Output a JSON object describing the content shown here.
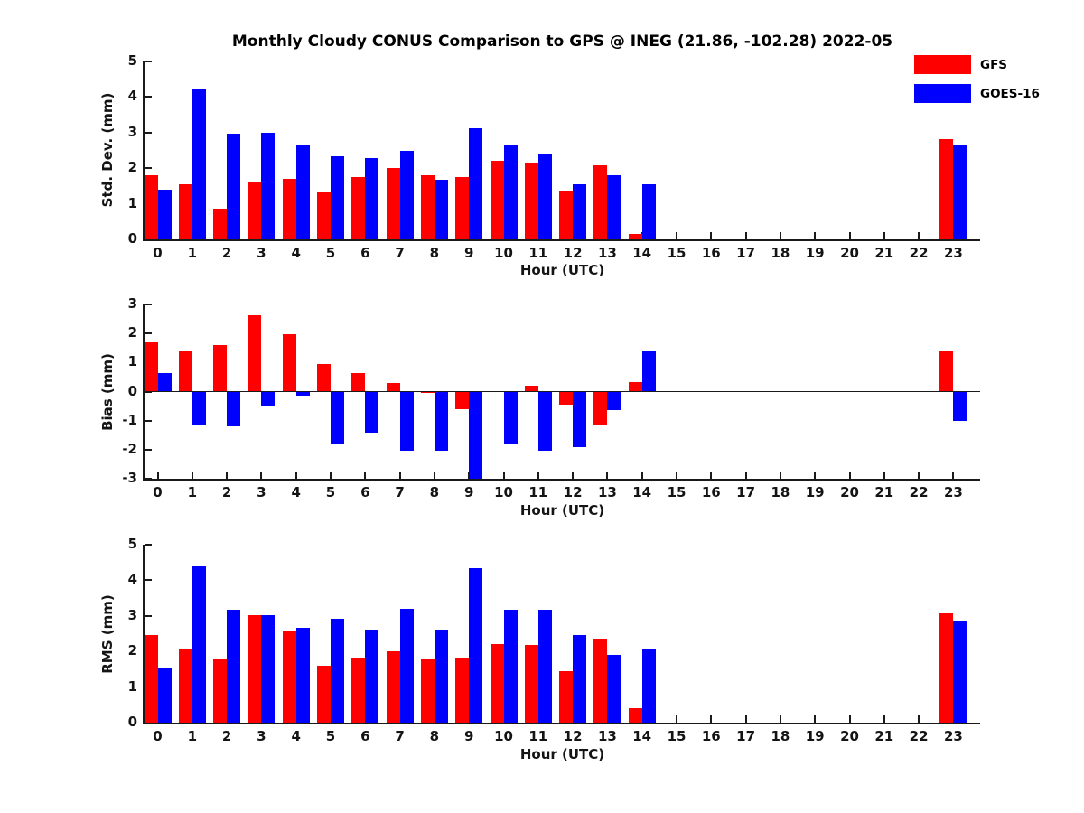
{
  "title": "Monthly Cloudy CONUS Comparison to GPS @ INEG (21.86, -102.28) 2022-05",
  "legend": [
    {
      "label": "GFS",
      "color": "#ff0000"
    },
    {
      "label": "GOES-16",
      "color": "#0000ff"
    }
  ],
  "colors": {
    "gfs": "#ff0000",
    "goes16": "#0000ff",
    "axis": "#1a1a1a",
    "background": "#ffffff"
  },
  "chart_data": [
    {
      "type": "bar",
      "panel": "std-dev",
      "ylabel": "Std. Dev. (mm)",
      "xlabel": "Hour (UTC)",
      "ylim": [
        0,
        5
      ],
      "yticks": [
        0,
        1,
        2,
        3,
        4,
        5
      ],
      "categories": [
        0,
        1,
        2,
        3,
        4,
        5,
        6,
        7,
        8,
        9,
        10,
        11,
        12,
        13,
        14,
        15,
        16,
        17,
        18,
        19,
        20,
        21,
        22,
        23
      ],
      "legend_position": "top-right-outside",
      "grid": false,
      "series": [
        {
          "name": "GFS",
          "color": "#ff0000",
          "values": [
            1.8,
            1.55,
            0.87,
            1.62,
            1.7,
            1.32,
            1.75,
            2.0,
            1.8,
            1.75,
            2.2,
            2.17,
            1.38,
            2.07,
            0.15,
            null,
            null,
            null,
            null,
            null,
            null,
            null,
            null,
            2.82
          ]
        },
        {
          "name": "GOES-16",
          "color": "#0000ff",
          "values": [
            1.4,
            4.22,
            2.97,
            2.99,
            2.66,
            2.33,
            2.28,
            2.5,
            1.68,
            3.12,
            2.67,
            2.42,
            1.56,
            1.8,
            1.56,
            null,
            null,
            null,
            null,
            null,
            null,
            null,
            null,
            2.67
          ]
        }
      ]
    },
    {
      "type": "bar",
      "panel": "bias",
      "ylabel": "Bias (mm)",
      "xlabel": "Hour (UTC)",
      "ylim": [
        -3,
        3
      ],
      "yticks": [
        -3,
        -2,
        -1,
        0,
        1,
        2,
        3
      ],
      "categories": [
        0,
        1,
        2,
        3,
        4,
        5,
        6,
        7,
        8,
        9,
        10,
        11,
        12,
        13,
        14,
        15,
        16,
        17,
        18,
        19,
        20,
        21,
        22,
        23
      ],
      "grid": false,
      "zero_line": true,
      "series": [
        {
          "name": "GFS",
          "color": "#ff0000",
          "values": [
            1.7,
            1.37,
            1.6,
            2.62,
            1.98,
            0.95,
            0.65,
            0.3,
            -0.05,
            -0.6,
            null,
            0.2,
            -0.45,
            -1.15,
            0.33,
            null,
            null,
            null,
            null,
            null,
            null,
            null,
            null,
            1.37
          ]
        },
        {
          "name": "GOES-16",
          "color": "#0000ff",
          "values": [
            0.65,
            -1.15,
            -1.2,
            -0.5,
            -0.15,
            -1.83,
            -1.4,
            -2.03,
            -2.05,
            -3.0,
            -1.8,
            -2.03,
            -1.9,
            -0.65,
            1.37,
            null,
            null,
            null,
            null,
            null,
            null,
            null,
            null,
            -1.02
          ]
        }
      ]
    },
    {
      "type": "bar",
      "panel": "rms",
      "ylabel": "RMS (mm)",
      "xlabel": "Hour (UTC)",
      "ylim": [
        0,
        5
      ],
      "yticks": [
        0,
        1,
        2,
        3,
        4,
        5
      ],
      "categories": [
        0,
        1,
        2,
        3,
        4,
        5,
        6,
        7,
        8,
        9,
        10,
        11,
        12,
        13,
        14,
        15,
        16,
        17,
        18,
        19,
        20,
        21,
        22,
        23
      ],
      "grid": false,
      "series": [
        {
          "name": "GFS",
          "color": "#ff0000",
          "values": [
            2.47,
            2.05,
            1.8,
            3.03,
            2.6,
            1.6,
            1.82,
            2.01,
            1.78,
            1.84,
            2.2,
            2.18,
            1.45,
            2.37,
            0.4,
            null,
            null,
            null,
            null,
            null,
            null,
            null,
            null,
            3.08
          ]
        },
        {
          "name": "GOES-16",
          "color": "#0000ff",
          "values": [
            1.52,
            4.4,
            3.16,
            3.01,
            2.66,
            2.93,
            2.62,
            3.19,
            2.62,
            4.33,
            3.18,
            3.16,
            2.47,
            1.9,
            2.08,
            null,
            null,
            null,
            null,
            null,
            null,
            null,
            null,
            2.86
          ]
        }
      ]
    }
  ]
}
